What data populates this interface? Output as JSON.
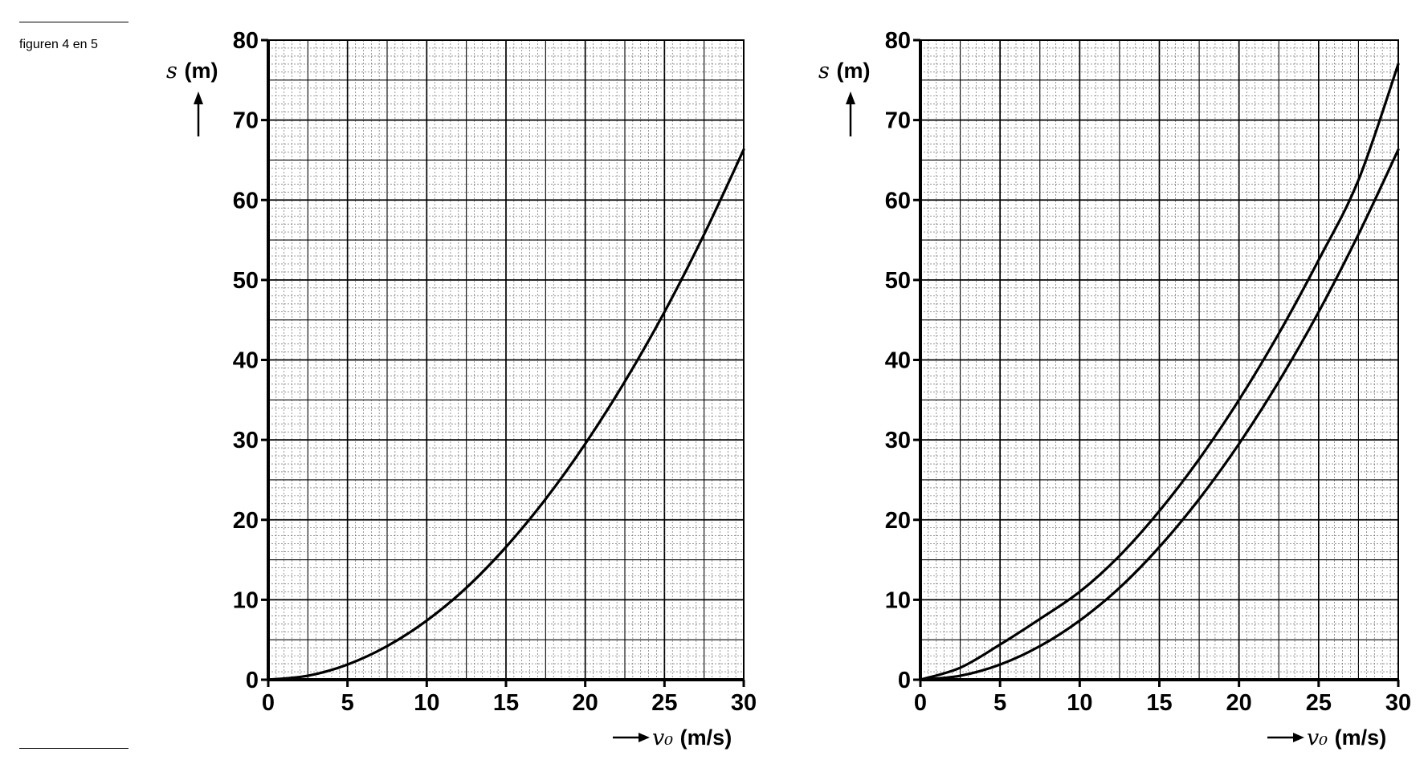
{
  "caption": "figuren 4 en 5",
  "chart_data": [
    {
      "type": "line",
      "xlabel": "v₀ (m/s)",
      "ylabel": "s (m)",
      "xlim": [
        0,
        30
      ],
      "ylim": [
        0,
        80
      ],
      "xticks": [
        0,
        5,
        10,
        15,
        20,
        25,
        30
      ],
      "yticks": [
        0,
        10,
        20,
        30,
        40,
        50,
        60,
        70,
        80
      ],
      "grid": true,
      "series": [
        {
          "x": [
            0,
            2.5,
            5,
            7.5,
            10,
            12.5,
            15,
            17.5,
            20,
            22.5,
            25,
            27.5,
            30
          ],
          "y": [
            0,
            0.5,
            1.9,
            4.2,
            7.4,
            11.5,
            16.6,
            22.6,
            29.5,
            37.3,
            46.0,
            55.7,
            66.3
          ]
        }
      ]
    },
    {
      "type": "line",
      "xlabel": "v₀ (m/s)",
      "ylabel": "s (m)",
      "xlim": [
        0,
        30
      ],
      "ylim": [
        0,
        80
      ],
      "xticks": [
        0,
        5,
        10,
        15,
        20,
        25,
        30
      ],
      "yticks": [
        0,
        10,
        20,
        30,
        40,
        50,
        60,
        70,
        80
      ],
      "grid": true,
      "series": [
        {
          "x": [
            0,
            2.5,
            5,
            7.5,
            10,
            12.5,
            15,
            17.5,
            20,
            22.5,
            25,
            27.5,
            30
          ],
          "y": [
            0,
            1.5,
            4.4,
            7.6,
            11.0,
            15.5,
            21.1,
            27.6,
            35.0,
            43.3,
            52.5,
            62.5,
            77.0
          ]
        },
        {
          "x": [
            0,
            2.5,
            5,
            7.5,
            10,
            12.5,
            15,
            17.5,
            20,
            22.5,
            25,
            27.5,
            30
          ],
          "y": [
            0,
            0.5,
            1.9,
            4.2,
            7.4,
            11.5,
            16.6,
            22.6,
            29.5,
            37.3,
            46.0,
            55.7,
            66.3
          ]
        }
      ]
    }
  ]
}
